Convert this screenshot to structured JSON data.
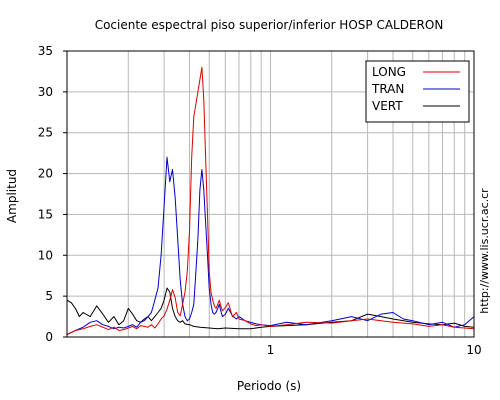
{
  "chart_data": {
    "type": "line",
    "title": "Cociente espectral piso superior/inferior  HOSP CALDERON",
    "xlabel": "Periodo (s)",
    "ylabel": "Amplitud",
    "side_note": "http://www.lis.ucr.ac.cr",
    "x_scale": "log",
    "xlim": [
      0.1,
      10
    ],
    "ylim": [
      0,
      35
    ],
    "x_ticks": [
      {
        "value": 1,
        "label": "1"
      },
      {
        "value": 10,
        "label": "10"
      }
    ],
    "y_ticks": [
      0,
      5,
      10,
      15,
      20,
      25,
      30,
      35
    ],
    "grid": true,
    "legend_position": "top-right",
    "series": [
      {
        "name": "LONG",
        "color": "#dd0000",
        "x": [
          0.1,
          0.11,
          0.12,
          0.13,
          0.14,
          0.15,
          0.16,
          0.17,
          0.18,
          0.19,
          0.2,
          0.21,
          0.22,
          0.23,
          0.24,
          0.25,
          0.26,
          0.27,
          0.28,
          0.29,
          0.3,
          0.31,
          0.32,
          0.33,
          0.34,
          0.35,
          0.36,
          0.37,
          0.38,
          0.39,
          0.4,
          0.41,
          0.42,
          0.43,
          0.44,
          0.45,
          0.46,
          0.47,
          0.48,
          0.49,
          0.5,
          0.51,
          0.52,
          0.53,
          0.54,
          0.55,
          0.56,
          0.57,
          0.58,
          0.6,
          0.62,
          0.65,
          0.68,
          0.7,
          0.75,
          0.8,
          0.85,
          0.9,
          1.0,
          1.2,
          1.5,
          2.0,
          2.5,
          3.0,
          3.5,
          4.0,
          5.0,
          6.0,
          7.0,
          8.0,
          9.0,
          10.0
        ],
        "y": [
          0.3,
          0.8,
          1.0,
          1.3,
          1.5,
          1.2,
          0.9,
          1.2,
          0.8,
          0.9,
          1.1,
          1.3,
          1.0,
          1.4,
          1.3,
          1.2,
          1.5,
          1.1,
          1.6,
          2.2,
          2.6,
          3.4,
          4.5,
          5.8,
          4.8,
          3.0,
          2.6,
          4.0,
          5.5,
          8.0,
          13.0,
          22.0,
          27.0,
          28.5,
          30.0,
          31.5,
          33.0,
          29.0,
          22.0,
          15.0,
          8.0,
          5.5,
          4.5,
          3.8,
          3.5,
          4.0,
          4.5,
          3.8,
          3.2,
          3.6,
          4.2,
          2.5,
          3.0,
          2.2,
          2.0,
          1.6,
          1.4,
          1.5,
          1.3,
          1.5,
          1.8,
          1.7,
          2.0,
          2.2,
          2.0,
          1.8,
          1.6,
          1.3,
          1.5,
          1.2,
          1.1,
          1.0
        ]
      },
      {
        "name": "TRAN",
        "color": "#0000cc",
        "x": [
          0.1,
          0.11,
          0.12,
          0.13,
          0.14,
          0.15,
          0.16,
          0.17,
          0.18,
          0.19,
          0.2,
          0.21,
          0.22,
          0.23,
          0.24,
          0.25,
          0.26,
          0.27,
          0.28,
          0.29,
          0.3,
          0.31,
          0.32,
          0.33,
          0.34,
          0.35,
          0.36,
          0.37,
          0.38,
          0.39,
          0.4,
          0.41,
          0.42,
          0.43,
          0.44,
          0.45,
          0.46,
          0.47,
          0.48,
          0.49,
          0.5,
          0.51,
          0.52,
          0.53,
          0.54,
          0.55,
          0.56,
          0.57,
          0.58,
          0.6,
          0.62,
          0.65,
          0.68,
          0.7,
          0.75,
          0.8,
          0.85,
          0.9,
          1.0,
          1.2,
          1.5,
          2.0,
          2.5,
          3.0,
          3.5,
          4.0,
          4.5,
          5.0,
          6.0,
          7.0,
          8.0,
          9.0,
          10.0
        ],
        "y": [
          0.3,
          0.8,
          1.2,
          1.8,
          2.0,
          1.5,
          1.3,
          1.0,
          1.2,
          1.1,
          1.3,
          1.5,
          1.2,
          1.8,
          2.0,
          2.5,
          3.0,
          4.5,
          6.0,
          10.0,
          16.0,
          22.0,
          19.0,
          20.5,
          17.0,
          12.0,
          7.0,
          4.0,
          2.5,
          2.0,
          2.2,
          3.0,
          4.0,
          8.0,
          12.0,
          18.0,
          20.5,
          18.0,
          14.0,
          10.0,
          6.0,
          4.0,
          3.0,
          2.8,
          3.0,
          3.5,
          4.0,
          3.2,
          2.5,
          2.8,
          3.5,
          2.6,
          2.2,
          2.5,
          2.0,
          1.8,
          1.6,
          1.5,
          1.4,
          1.8,
          1.5,
          2.0,
          2.5,
          2.0,
          2.8,
          3.0,
          2.2,
          2.0,
          1.5,
          1.8,
          1.2,
          1.5,
          2.5
        ]
      },
      {
        "name": "VERT",
        "color": "#000000",
        "x": [
          0.1,
          0.105,
          0.11,
          0.115,
          0.12,
          0.13,
          0.14,
          0.15,
          0.16,
          0.17,
          0.18,
          0.19,
          0.2,
          0.21,
          0.22,
          0.23,
          0.24,
          0.25,
          0.26,
          0.27,
          0.28,
          0.29,
          0.3,
          0.31,
          0.32,
          0.33,
          0.34,
          0.35,
          0.36,
          0.37,
          0.38,
          0.4,
          0.42,
          0.45,
          0.5,
          0.55,
          0.6,
          0.7,
          0.8,
          0.9,
          1.0,
          1.2,
          1.5,
          2.0,
          2.5,
          3.0,
          3.5,
          4.0,
          5.0,
          6.0,
          7.0,
          8.0,
          9.0,
          10.0
        ],
        "y": [
          4.5,
          4.2,
          3.5,
          2.5,
          3.0,
          2.5,
          3.8,
          2.8,
          1.8,
          2.5,
          1.5,
          2.0,
          3.5,
          2.8,
          2.0,
          1.8,
          2.2,
          2.5,
          2.0,
          2.5,
          3.0,
          3.5,
          4.5,
          6.0,
          5.5,
          3.5,
          2.5,
          2.0,
          1.8,
          2.0,
          1.6,
          1.5,
          1.3,
          1.2,
          1.1,
          1.0,
          1.1,
          1.0,
          1.0,
          1.2,
          1.3,
          1.4,
          1.5,
          1.8,
          2.0,
          2.8,
          2.5,
          2.2,
          1.8,
          1.6,
          1.5,
          1.7,
          1.3,
          1.2
        ]
      }
    ]
  }
}
